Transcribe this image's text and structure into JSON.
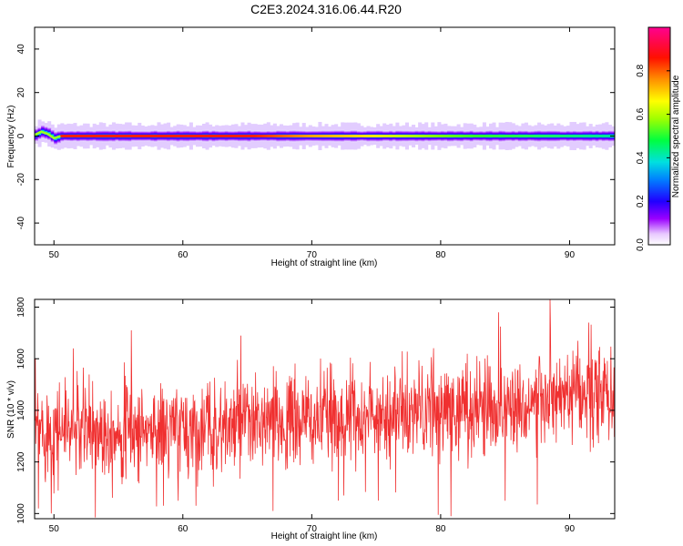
{
  "figure_title": "C2E3.2024.316.06.44.R20",
  "chart_data": [
    {
      "type": "heatmap",
      "title": "",
      "xlabel": "Height of straight line (km)",
      "ylabel": "Frequency (Hz)",
      "xlim": [
        48.5,
        93.5
      ],
      "ylim": [
        -50,
        50
      ],
      "xticks": [
        50,
        60,
        70,
        80,
        90
      ],
      "yticks": [
        -40,
        -20,
        0,
        20,
        40
      ],
      "colorbar": {
        "label": "Normalized spectral amplitude",
        "range": [
          0,
          1
        ],
        "ticks": [
          0.0,
          0.2,
          0.4,
          0.6,
          0.8
        ],
        "colormap": "rainbow"
      },
      "band": {
        "center_hz": 0,
        "ridge": [
          {
            "x": 48.5,
            "y": 0.5
          },
          {
            "x": 49.0,
            "y": 2.0
          },
          {
            "x": 49.5,
            "y": 1.0
          },
          {
            "x": 50.0,
            "y": -1.0
          },
          {
            "x": 50.5,
            "y": 0.0
          },
          {
            "x": 93.5,
            "y": 0.0
          }
        ],
        "segments": [
          {
            "x_start": 48.5,
            "x_end": 50.5,
            "peak_amplitude": 0.55
          },
          {
            "x_start": 50.5,
            "x_end": 68.0,
            "peak_amplitude": 0.95
          },
          {
            "x_start": 68.0,
            "x_end": 76.0,
            "peak_amplitude": 0.78
          },
          {
            "x_start": 76.0,
            "x_end": 93.5,
            "peak_amplitude": 0.5
          }
        ]
      }
    },
    {
      "type": "line",
      "title": "",
      "xlabel": "Height of straight line (km)",
      "ylabel": "SNR (10 * v/v)",
      "xlim": [
        48.5,
        93.5
      ],
      "ylim": [
        980,
        1830
      ],
      "xticks": [
        50,
        60,
        70,
        80,
        90
      ],
      "yticks": [
        1000,
        1200,
        1400,
        1600,
        1800
      ],
      "color": "#f03030",
      "trend": [
        {
          "x": 48.5,
          "y": 1330
        },
        {
          "x": 60.0,
          "y": 1320
        },
        {
          "x": 70.0,
          "y": 1360
        },
        {
          "x": 80.0,
          "y": 1400
        },
        {
          "x": 93.5,
          "y": 1460
        }
      ],
      "noise_std": 95,
      "sample_count": 1500,
      "peaks": [
        {
          "x": 51.5,
          "y": 1640
        },
        {
          "x": 56.0,
          "y": 1710
        },
        {
          "x": 64.5,
          "y": 1690
        },
        {
          "x": 84.5,
          "y": 1780
        },
        {
          "x": 88.5,
          "y": 1830
        },
        {
          "x": 91.5,
          "y": 1740
        }
      ],
      "dips": [
        {
          "x": 48.8,
          "y": 1020
        },
        {
          "x": 49.8,
          "y": 1000
        },
        {
          "x": 53.2,
          "y": 985
        },
        {
          "x": 58.5,
          "y": 1030
        },
        {
          "x": 67.0,
          "y": 1010
        },
        {
          "x": 72.5,
          "y": 1070
        },
        {
          "x": 79.8,
          "y": 995
        },
        {
          "x": 80.8,
          "y": 990
        },
        {
          "x": 85.0,
          "y": 1050
        },
        {
          "x": 87.5,
          "y": 1035
        }
      ]
    }
  ]
}
